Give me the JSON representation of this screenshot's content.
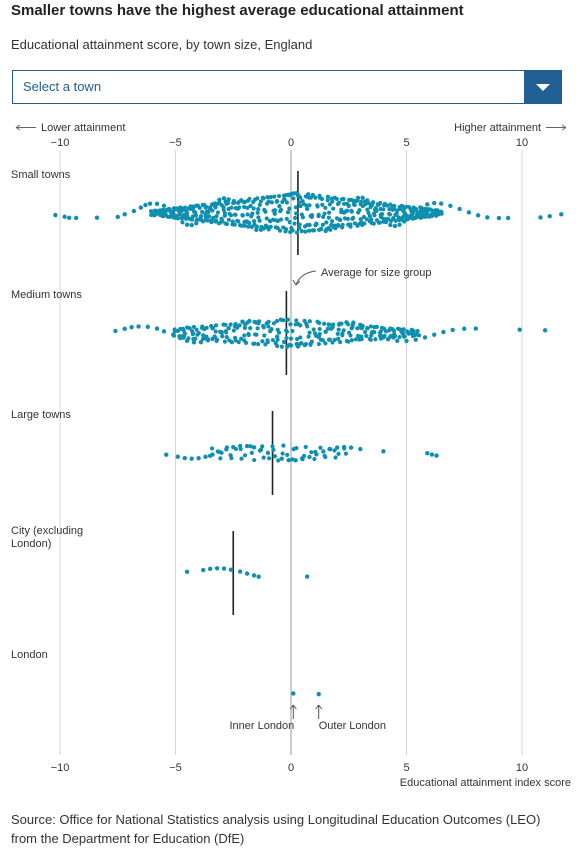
{
  "header": {
    "title": "Smaller towns have the highest average educational attainment",
    "subtitle": "Educational attainment score, by town size, England"
  },
  "select": {
    "placeholder": "Select a town",
    "icon": "chevron-down-icon"
  },
  "colors": {
    "dot": "#0f8fb0",
    "accent": "#206095",
    "median": "#222222",
    "grid": "#d6d6d6"
  },
  "chart_data": {
    "type": "scatter",
    "subtype": "beeswarm",
    "xlim": [
      -10,
      10
    ],
    "x_ticks": [
      -10,
      -5,
      0,
      5,
      10
    ],
    "x_tick_labels": [
      "−10",
      "−5",
      "0",
      "5",
      "10"
    ],
    "xlabel": "Educational attainment index score",
    "top_left_label": "Lower attainment",
    "top_right_label": "Higher attainment",
    "grid": true,
    "groups": [
      {
        "name": "Small towns",
        "average": 0.3,
        "values": [
          -10.2,
          -9.8,
          -9.6,
          -9.3,
          -8.4,
          -7.5,
          -7.2,
          -6.8,
          -6.5,
          -6.3,
          -6.1,
          -5.8,
          -5.5,
          -5.3,
          -5.1,
          -4.9,
          -4.7,
          -4.5,
          -4.3,
          -4.1,
          -3.9,
          -3.7,
          -3.5,
          -3.3,
          -3.1,
          -2.9,
          -2.7,
          -2.5,
          -2.3,
          -2.1,
          -1.9,
          -1.7,
          -1.5,
          -1.3,
          -1.1,
          -0.9,
          -0.7,
          -0.5,
          -0.3,
          -0.1,
          0.1,
          0.3,
          0.5,
          0.7,
          0.9,
          1.1,
          1.3,
          1.5,
          1.7,
          1.9,
          2.1,
          2.3,
          2.5,
          2.7,
          2.9,
          3.1,
          3.3,
          3.5,
          3.7,
          3.9,
          4.1,
          4.3,
          4.5,
          4.7,
          4.9,
          5.1,
          5.3,
          5.6,
          5.9,
          6.2,
          6.5,
          6.9,
          7.3,
          7.7,
          8.1,
          8.5,
          9.0,
          9.4,
          10.8,
          11.2,
          11.7
        ]
      },
      {
        "name": "Medium towns",
        "average": -0.2,
        "values": [
          -7.6,
          -7.2,
          -6.9,
          -6.6,
          -6.2,
          -5.8,
          -5.5,
          -5.1,
          -4.8,
          -4.5,
          -4.2,
          -3.9,
          -3.6,
          -3.3,
          -3.0,
          -2.7,
          -2.4,
          -2.1,
          -1.8,
          -1.5,
          -1.2,
          -0.9,
          -0.6,
          -0.3,
          0.0,
          0.3,
          0.6,
          0.9,
          1.2,
          1.5,
          1.8,
          2.1,
          2.4,
          2.7,
          3.0,
          3.3,
          3.6,
          3.9,
          4.2,
          4.6,
          5.0,
          5.4,
          5.8,
          6.2,
          6.6,
          7.0,
          7.5,
          8.0,
          9.9,
          11.0
        ]
      },
      {
        "name": "Large towns",
        "average": -0.8,
        "values": [
          -5.4,
          -4.9,
          -4.6,
          -4.3,
          -4.0,
          -3.7,
          -3.4,
          -3.1,
          -2.8,
          -2.5,
          -2.2,
          -1.9,
          -1.6,
          -1.3,
          -1.0,
          -0.7,
          -0.4,
          -0.1,
          0.2,
          0.5,
          0.8,
          1.1,
          1.4,
          1.7,
          2.0,
          2.3,
          2.6,
          3.0,
          4.0,
          5.9,
          6.1,
          6.3
        ]
      },
      {
        "name": "City (excluding London)",
        "average": -2.5,
        "values": [
          -4.5,
          -3.8,
          -3.5,
          -3.2,
          -2.9,
          -2.6,
          -2.2,
          -1.9,
          -1.6,
          -1.4,
          0.7
        ]
      },
      {
        "name": "London",
        "average": null,
        "values": [
          0.1,
          1.2
        ],
        "point_labels": [
          "Inner London",
          "Outer London"
        ]
      }
    ],
    "annotations": [
      {
        "text": "Average for size group",
        "group": "Small towns"
      }
    ]
  },
  "source": "Source: Office for National Statistics analysis using Longitudinal Education Outcomes (LEO) from the Department for Education (DfE)"
}
